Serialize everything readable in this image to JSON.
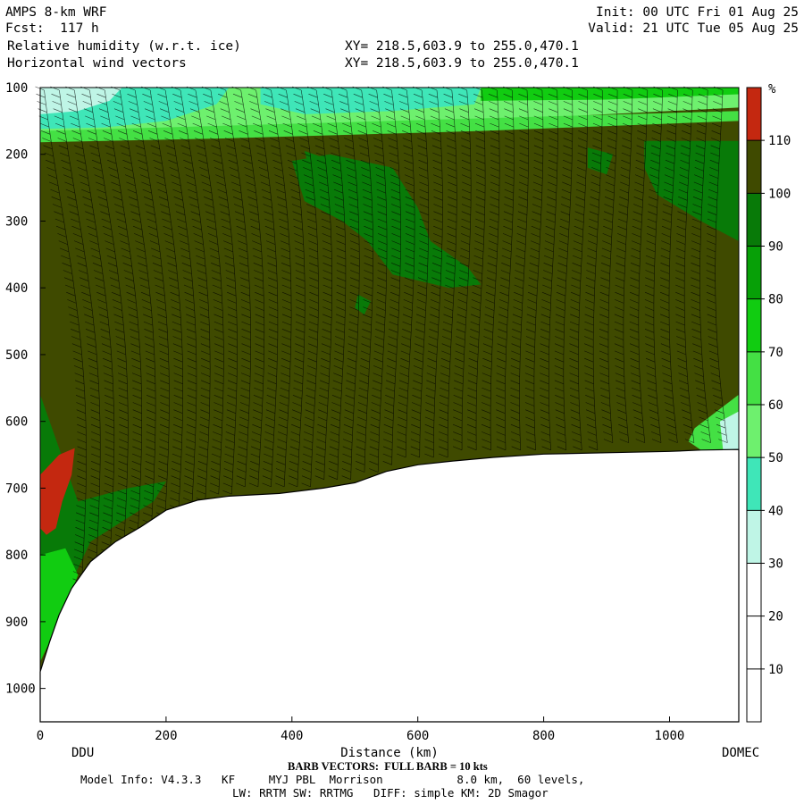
{
  "header": {
    "model": "AMPS 8-km WRF",
    "forecast": "Fcst:  117 h",
    "field1": "Relative humidity (w.r.t. ice)",
    "field2": "Horizontal wind vectors",
    "init": "Init: 00 UTC Fri 01 Aug 25",
    "valid": "Valid: 21 UTC Tue 05 Aug 25",
    "xy1": "XY= 218.5,603.9 to 255.0,470.1",
    "xy2": "XY= 218.5,603.9 to 255.0,470.1"
  },
  "footer": {
    "barb_note": "BARB VECTORS:  FULL BARB = 10 kts",
    "model_info": "Model Info: V4.3.3   KF     MYJ PBL  Morrison           8.0 km,  60 levels,",
    "physics": "LW: RRTM SW: RRTMG   DIFF: simple KM: 2D Smagor"
  },
  "colors": {
    "rh_100_110": "#3f4a00",
    "rh_90_100": "#087a08",
    "rh_80_90": "#07a007",
    "rh_70_80": "#11cc11",
    "rh_60_70": "#44e044",
    "rh_50_60": "#6ef06e",
    "rh_40_50": "#3fe6b8",
    "rh_30_40": "#bff5e6",
    "rh_above_110": "#c42810",
    "terrain": "#ffffff"
  },
  "chart_data": {
    "type": "heatmap",
    "xlabel": "Distance (km)",
    "xlim": [
      0,
      1110
    ],
    "x_ticks": [
      0,
      200,
      400,
      600,
      800,
      1000
    ],
    "ylim": [
      1050,
      100
    ],
    "y_ticks": [
      100,
      200,
      300,
      400,
      500,
      600,
      700,
      800,
      900,
      1000
    ],
    "endpoint_labels": {
      "left": "DDU",
      "right": "DOMEC"
    },
    "colorbar": {
      "unit": "%",
      "levels": [
        10,
        20,
        30,
        40,
        50,
        60,
        70,
        80,
        90,
        100,
        110
      ],
      "bins": [
        {
          "from": 0,
          "to": 30,
          "color": "#ffffff"
        },
        {
          "from": 30,
          "to": 40,
          "color": "#bff5e6"
        },
        {
          "from": 40,
          "to": 50,
          "color": "#3fe6b8"
        },
        {
          "from": 50,
          "to": 60,
          "color": "#6ef06e"
        },
        {
          "from": 60,
          "to": 70,
          "color": "#44e044"
        },
        {
          "from": 70,
          "to": 80,
          "color": "#11cc11"
        },
        {
          "from": 80,
          "to": 90,
          "color": "#07a007"
        },
        {
          "from": 90,
          "to": 100,
          "color": "#087a08"
        },
        {
          "from": 100,
          "to": 110,
          "color": "#3f4a00"
        },
        {
          "from": 110,
          "to": 120,
          "color": "#c42810"
        }
      ]
    },
    "terrain_surface": [
      {
        "x": 0,
        "p": 975
      },
      {
        "x": 15,
        "p": 930
      },
      {
        "x": 30,
        "p": 890
      },
      {
        "x": 50,
        "p": 850
      },
      {
        "x": 80,
        "p": 810
      },
      {
        "x": 120,
        "p": 780
      },
      {
        "x": 160,
        "p": 758
      },
      {
        "x": 200,
        "p": 733
      },
      {
        "x": 250,
        "p": 718
      },
      {
        "x": 300,
        "p": 712
      },
      {
        "x": 380,
        "p": 708
      },
      {
        "x": 450,
        "p": 700
      },
      {
        "x": 500,
        "p": 692
      },
      {
        "x": 550,
        "p": 675
      },
      {
        "x": 600,
        "p": 665
      },
      {
        "x": 650,
        "p": 660
      },
      {
        "x": 720,
        "p": 654
      },
      {
        "x": 800,
        "p": 649
      },
      {
        "x": 900,
        "p": 647
      },
      {
        "x": 1000,
        "p": 645
      },
      {
        "x": 1050,
        "p": 643
      },
      {
        "x": 1110,
        "p": 642
      }
    ],
    "regions": [
      {
        "name": "upper-dry-layer",
        "color": "#6ef06e",
        "points": [
          [
            0,
            100
          ],
          [
            1110,
            100
          ],
          [
            1110,
            130
          ],
          [
            900,
            140
          ],
          [
            700,
            150
          ],
          [
            500,
            160
          ],
          [
            300,
            165
          ],
          [
            100,
            172
          ],
          [
            0,
            175
          ]
        ]
      },
      {
        "name": "cyan-upper-left",
        "color": "#3fe6b8",
        "points": [
          [
            0,
            100
          ],
          [
            300,
            100
          ],
          [
            280,
            125
          ],
          [
            200,
            150
          ],
          [
            100,
            160
          ],
          [
            0,
            162
          ]
        ]
      },
      {
        "name": "pale-upper-left",
        "color": "#bff5e6",
        "points": [
          [
            0,
            100
          ],
          [
            130,
            100
          ],
          [
            110,
            120
          ],
          [
            60,
            135
          ],
          [
            0,
            140
          ]
        ]
      },
      {
        "name": "cyan-upper-middle",
        "color": "#3fe6b8",
        "points": [
          [
            350,
            100
          ],
          [
            700,
            100
          ],
          [
            690,
            125
          ],
          [
            560,
            135
          ],
          [
            420,
            140
          ],
          [
            350,
            125
          ]
        ]
      },
      {
        "name": "bright-top-right",
        "color": "#11cc11",
        "points": [
          [
            700,
            100
          ],
          [
            1110,
            100
          ],
          [
            1110,
            110
          ],
          [
            900,
            118
          ],
          [
            700,
            120
          ]
        ]
      },
      {
        "name": "green-band-top",
        "color": "#44e044",
        "points": [
          [
            0,
            165
          ],
          [
            1110,
            135
          ],
          [
            1110,
            150
          ],
          [
            700,
            165
          ],
          [
            300,
            176
          ],
          [
            0,
            182
          ]
        ]
      },
      {
        "name": "tongue-mid",
        "color": "#087a08",
        "points": [
          [
            400,
            210
          ],
          [
            460,
            200
          ],
          [
            560,
            220
          ],
          [
            600,
            280
          ],
          [
            620,
            330
          ],
          [
            680,
            370
          ],
          [
            700,
            395
          ],
          [
            650,
            400
          ],
          [
            560,
            380
          ],
          [
            520,
            330
          ],
          [
            480,
            300
          ],
          [
            420,
            270
          ]
        ]
      },
      {
        "name": "blob-left-mid",
        "color": "#087a08",
        "points": [
          [
            420,
            195
          ],
          [
            480,
            215
          ],
          [
            470,
            240
          ],
          [
            430,
            230
          ]
        ]
      },
      {
        "name": "right-green",
        "color": "#087a08",
        "points": [
          [
            960,
            180
          ],
          [
            1110,
            180
          ],
          [
            1110,
            330
          ],
          [
            1050,
            300
          ],
          [
            980,
            260
          ],
          [
            960,
            220
          ]
        ]
      },
      {
        "name": "right-blob-2",
        "color": "#087a08",
        "points": [
          [
            870,
            190
          ],
          [
            910,
            200
          ],
          [
            900,
            230
          ],
          [
            870,
            220
          ]
        ]
      },
      {
        "name": "small-blob",
        "color": "#087a08",
        "points": [
          [
            505,
            410
          ],
          [
            525,
            420
          ],
          [
            515,
            440
          ],
          [
            500,
            430
          ]
        ]
      },
      {
        "name": "right-bottom-bright",
        "color": "#44e044",
        "points": [
          [
            1040,
            610
          ],
          [
            1110,
            560
          ],
          [
            1110,
            642
          ],
          [
            1050,
            643
          ],
          [
            1030,
            630
          ]
        ]
      },
      {
        "name": "right-bottom-cyan",
        "color": "#bff5e6",
        "points": [
          [
            1080,
            600
          ],
          [
            1110,
            585
          ],
          [
            1110,
            642
          ],
          [
            1085,
            643
          ]
        ]
      },
      {
        "name": "left-lower-green",
        "color": "#087a08",
        "points": [
          [
            0,
            560
          ],
          [
            30,
            640
          ],
          [
            60,
            720
          ],
          [
            140,
            700
          ],
          [
            200,
            690
          ],
          [
            180,
            720
          ],
          [
            80,
            780
          ],
          [
            40,
            860
          ],
          [
            10,
            920
          ],
          [
            0,
            960
          ]
        ]
      },
      {
        "name": "left-bright",
        "color": "#11cc11",
        "points": [
          [
            0,
            800
          ],
          [
            40,
            790
          ],
          [
            60,
            830
          ],
          [
            40,
            880
          ],
          [
            15,
            930
          ],
          [
            0,
            960
          ]
        ]
      },
      {
        "name": "red-patch",
        "color": "#c42810",
        "points": [
          [
            0,
            680
          ],
          [
            30,
            650
          ],
          [
            55,
            640
          ],
          [
            50,
            680
          ],
          [
            35,
            720
          ],
          [
            25,
            760
          ],
          [
            10,
            770
          ],
          [
            0,
            760
          ]
        ]
      }
    ]
  }
}
